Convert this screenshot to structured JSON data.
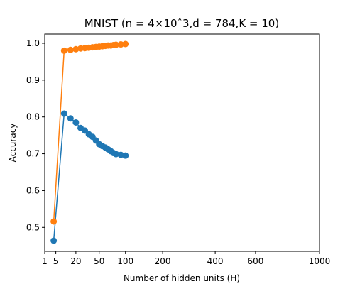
{
  "chart_data": {
    "type": "line",
    "title": "MNIST (n = 4×10ˆ3,d = 784,K = 10)",
    "xlabel": "Number of hidden units (H)",
    "ylabel": "Accuracy",
    "x_scale": "sqrt",
    "xlim": [
      1,
      1000
    ],
    "ylim": [
      0.435,
      1.025
    ],
    "xticks": [
      1,
      5,
      20,
      50,
      100,
      200,
      400,
      600,
      1000
    ],
    "yticks": [
      0.5,
      0.6,
      0.7,
      0.8,
      0.9,
      1.0
    ],
    "ytick_labels": [
      "0.5",
      "0.6",
      "0.7",
      "0.8",
      "0.9",
      "1.0"
    ],
    "grid": false,
    "series": [
      {
        "color": "#1f77b4",
        "x": [
          4,
          10,
          15,
          20,
          25,
          30,
          35,
          40,
          45,
          50,
          55,
          60,
          65,
          70,
          75,
          80,
          90,
          100
        ],
        "y": [
          0.464,
          0.809,
          0.796,
          0.785,
          0.77,
          0.763,
          0.753,
          0.746,
          0.736,
          0.726,
          0.721,
          0.717,
          0.712,
          0.707,
          0.702,
          0.699,
          0.697,
          0.695
        ]
      },
      {
        "color": "#ff7f0e",
        "x": [
          4,
          10,
          15,
          20,
          25,
          30,
          35,
          40,
          45,
          50,
          55,
          60,
          65,
          70,
          75,
          80,
          90,
          100
        ],
        "y": [
          0.516,
          0.98,
          0.982,
          0.984,
          0.986,
          0.987,
          0.988,
          0.989,
          0.99,
          0.991,
          0.992,
          0.993,
          0.994,
          0.994,
          0.995,
          0.996,
          0.997,
          0.998
        ]
      }
    ]
  }
}
